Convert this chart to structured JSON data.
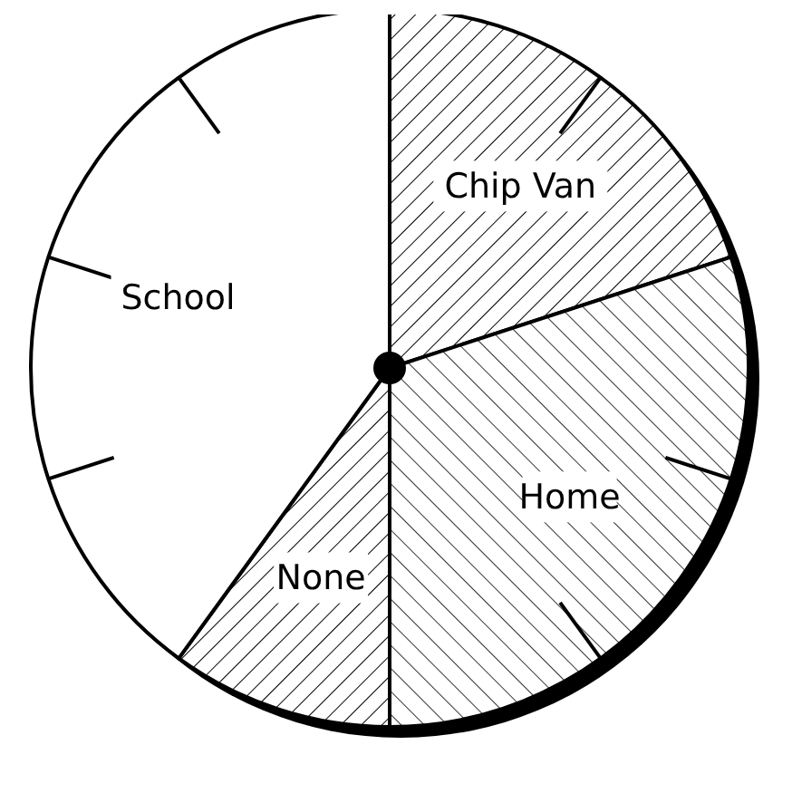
{
  "chart_data": {
    "type": "pie",
    "categories": [
      "Chip Van",
      "Home",
      "None",
      "School"
    ],
    "values": [
      20,
      30,
      10,
      40
    ],
    "colors": [
      "#ffffff",
      "#ffffff",
      "#ffffff",
      "#ffffff"
    ]
  }
}
